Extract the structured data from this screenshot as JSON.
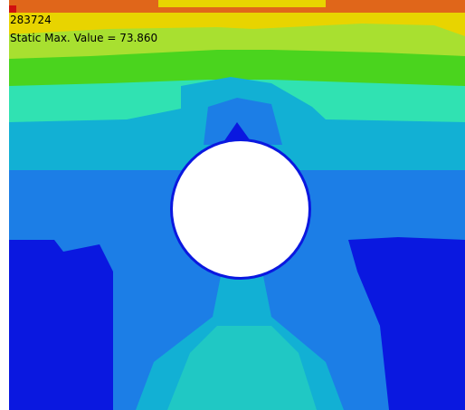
{
  "header": {
    "id": "283724",
    "max_value": "Static Max. Value =  73.860"
  }
}
